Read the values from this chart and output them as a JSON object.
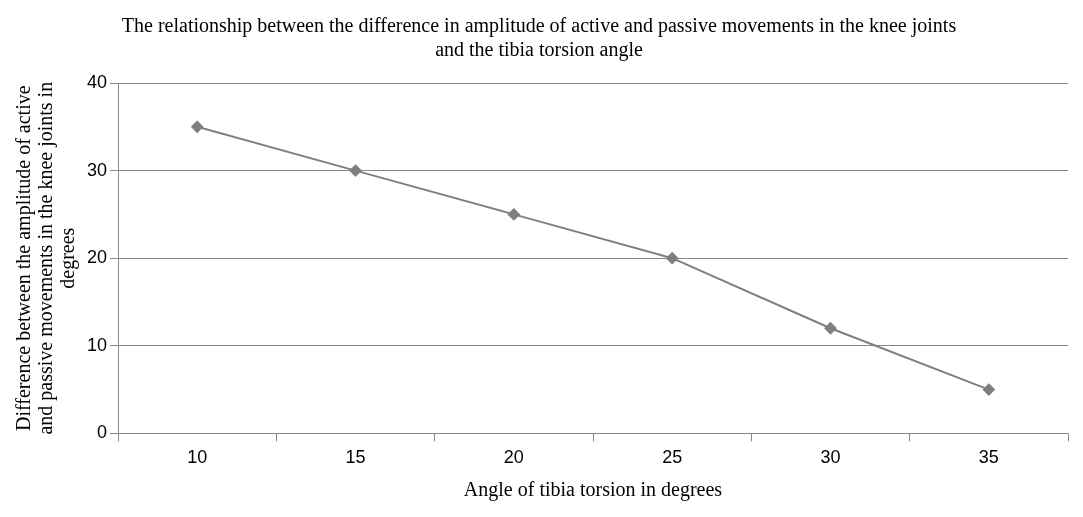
{
  "chart_data": {
    "type": "line",
    "title": "The relationship between the difference in amplitude of active and passive movements in the knee joints and the tibia torsion angle",
    "xlabel": "Angle of tibia torsion in degrees",
    "ylabel": "Difference between the amplitude of active and passive movements in the knee joints in degrees",
    "categories": [
      "10",
      "15",
      "20",
      "25",
      "30",
      "35"
    ],
    "series": [
      {
        "color": "#7f7f7f",
        "values": [
          35,
          30,
          25,
          20,
          12,
          5
        ]
      }
    ],
    "ylim": [
      0,
      40
    ],
    "yticks": [
      0,
      10,
      20,
      30,
      40
    ],
    "grid": "y",
    "legend": false,
    "marker": "diamond",
    "line_style": "solid"
  }
}
